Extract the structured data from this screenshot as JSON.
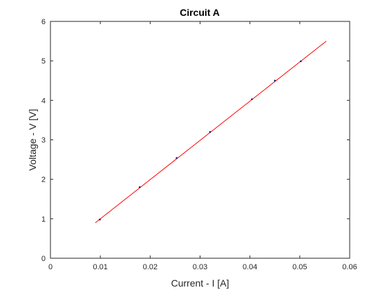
{
  "chart_data": {
    "type": "scatter",
    "title": "Circuit A",
    "xlabel": "Current - I [A]",
    "ylabel": "Voltage - V [V]",
    "xlim": [
      0,
      0.06
    ],
    "ylim": [
      0,
      6
    ],
    "xticks": [
      0,
      0.01,
      0.02,
      0.03,
      0.04,
      0.05,
      0.06
    ],
    "xtick_labels": [
      "0",
      "0.01",
      "0.02",
      "0.03",
      "0.04",
      "0.05",
      "0.06"
    ],
    "yticks": [
      0,
      1,
      2,
      3,
      4,
      5,
      6
    ],
    "ytick_labels": [
      "0",
      "1",
      "2",
      "3",
      "4",
      "5",
      "6"
    ],
    "grid": false,
    "series": [
      {
        "type": "scatter",
        "color": "#1a1a80",
        "x": [
          0.0099,
          0.0179,
          0.0253,
          0.032,
          0.0404,
          0.045,
          0.0502
        ],
        "y": [
          0.98,
          1.8,
          2.54,
          3.2,
          4.03,
          4.5,
          4.99
        ]
      },
      {
        "type": "line",
        "color": "#ff0000",
        "x": [
          0.009,
          0.0553
        ],
        "y": [
          0.9,
          5.5
        ]
      }
    ]
  }
}
